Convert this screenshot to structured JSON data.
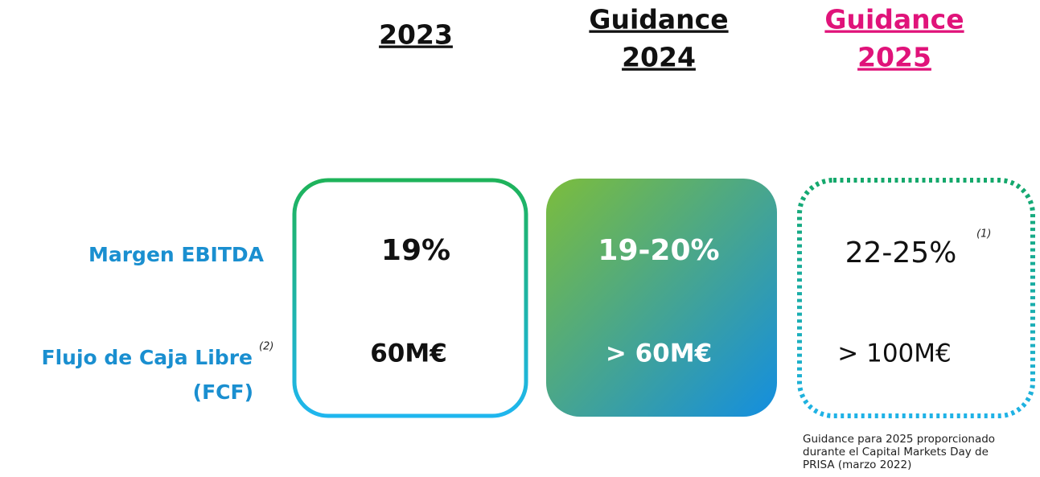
{
  "columns": [
    {
      "lines": [
        "2023"
      ]
    },
    {
      "lines": [
        "Guidance",
        "2024"
      ]
    },
    {
      "lines": [
        "Guidance",
        "2025"
      ]
    }
  ],
  "rows": [
    {
      "label": [
        "Margen EBITDA"
      ],
      "values": [
        "19%",
        "19-20%",
        "22-25%"
      ],
      "note": "(1)"
    },
    {
      "label": [
        "Flujo de Caja Libre",
        "(FCF)"
      ],
      "values": [
        "60M€",
        "> 60M€",
        "> 100M€"
      ],
      "note": "(2)"
    }
  ],
  "footnote": [
    "Guidance para 2025 proporcionado",
    "durante el Capital Markets Day de",
    "PRISA (marzo 2022)"
  ]
}
